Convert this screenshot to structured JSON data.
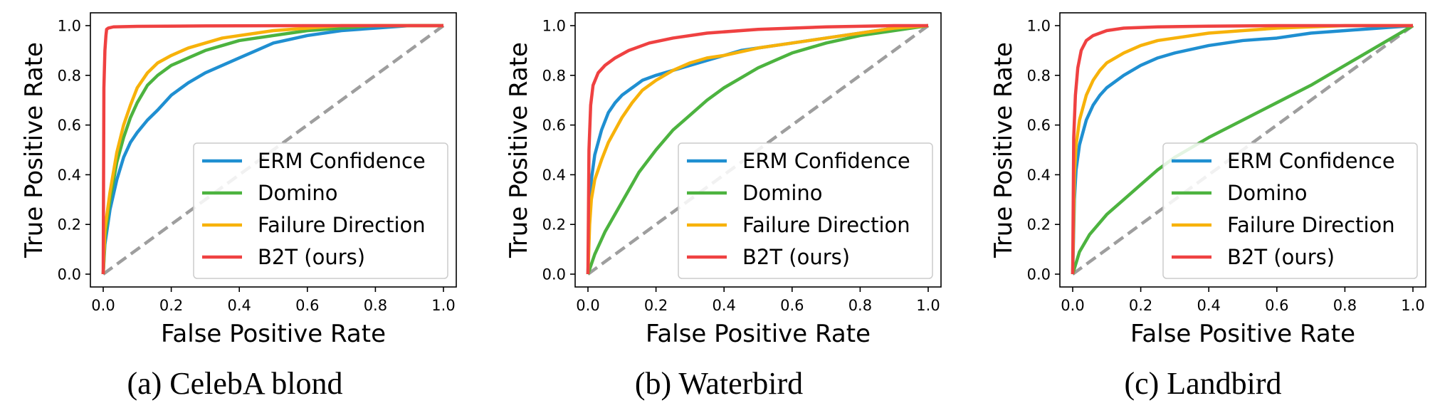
{
  "chart_data": [
    {
      "type": "line",
      "caption": "(a) CelebA blond",
      "xlabel": "False Positive Rate",
      "ylabel": "True Positive Rate",
      "xlim": [
        0,
        1
      ],
      "ylim": [
        0,
        1
      ],
      "xticks": [
        "0.0",
        "0.2",
        "0.4",
        "0.6",
        "0.8",
        "1.0"
      ],
      "yticks": [
        "0.0",
        "0.2",
        "0.4",
        "0.6",
        "0.8",
        "1.0"
      ],
      "legend_position": "lower-right",
      "diagonal": {
        "x": [
          0,
          1
        ],
        "y": [
          0,
          1
        ],
        "color": "#9e9e9e",
        "style": "dashed"
      },
      "series": [
        {
          "name": "ERM Confidence",
          "color": "#1f8fd1",
          "x": [
            0,
            0.005,
            0.02,
            0.04,
            0.06,
            0.08,
            0.1,
            0.13,
            0.16,
            0.2,
            0.25,
            0.3,
            0.35,
            0.4,
            0.45,
            0.5,
            0.6,
            0.7,
            0.8,
            0.9,
            1.0
          ],
          "y": [
            0,
            0.12,
            0.26,
            0.38,
            0.47,
            0.53,
            0.57,
            0.62,
            0.66,
            0.72,
            0.77,
            0.81,
            0.84,
            0.87,
            0.9,
            0.93,
            0.96,
            0.98,
            0.99,
            1.0,
            1.0
          ]
        },
        {
          "name": "Domino",
          "color": "#4cb33f",
          "x": [
            0,
            0.005,
            0.02,
            0.04,
            0.06,
            0.08,
            0.1,
            0.13,
            0.16,
            0.2,
            0.25,
            0.3,
            0.35,
            0.4,
            0.45,
            0.5,
            0.6,
            0.7,
            0.8,
            0.9,
            1.0
          ],
          "y": [
            0,
            0.15,
            0.3,
            0.45,
            0.55,
            0.63,
            0.69,
            0.76,
            0.8,
            0.84,
            0.87,
            0.9,
            0.92,
            0.94,
            0.95,
            0.96,
            0.98,
            0.99,
            1.0,
            1.0,
            1.0
          ]
        },
        {
          "name": "Failure Direction",
          "color": "#f7b20a",
          "x": [
            0,
            0.005,
            0.02,
            0.04,
            0.06,
            0.08,
            0.1,
            0.13,
            0.16,
            0.2,
            0.25,
            0.3,
            0.35,
            0.4,
            0.45,
            0.5,
            0.6,
            0.7,
            0.8,
            0.9,
            1.0
          ],
          "y": [
            0,
            0.18,
            0.33,
            0.49,
            0.6,
            0.68,
            0.75,
            0.81,
            0.85,
            0.88,
            0.91,
            0.93,
            0.95,
            0.96,
            0.97,
            0.98,
            0.99,
            1.0,
            1.0,
            1.0,
            1.0
          ]
        },
        {
          "name": "B2T (ours)",
          "color": "#ef4141",
          "x": [
            0,
            0.002,
            0.005,
            0.008,
            0.01,
            0.015,
            0.03,
            0.1,
            0.3,
            0.6,
            1.0
          ],
          "y": [
            0,
            0.75,
            0.9,
            0.96,
            0.985,
            0.99,
            0.995,
            0.997,
            0.999,
            1.0,
            1.0
          ]
        }
      ]
    },
    {
      "type": "line",
      "caption": "(b) Waterbird",
      "xlabel": "False Positive Rate",
      "ylabel": "True Positive Rate",
      "xlim": [
        0,
        1
      ],
      "ylim": [
        0,
        1
      ],
      "xticks": [
        "0.0",
        "0.2",
        "0.4",
        "0.6",
        "0.8",
        "1.0"
      ],
      "yticks": [
        "0.0",
        "0.2",
        "0.4",
        "0.6",
        "0.8",
        "1.0"
      ],
      "legend_position": "lower-right",
      "diagonal": {
        "x": [
          0,
          1
        ],
        "y": [
          0,
          1
        ],
        "color": "#9e9e9e",
        "style": "dashed"
      },
      "series": [
        {
          "name": "ERM Confidence",
          "color": "#1f8fd1",
          "x": [
            0,
            0.005,
            0.01,
            0.02,
            0.04,
            0.06,
            0.08,
            0.1,
            0.13,
            0.16,
            0.2,
            0.25,
            0.3,
            0.35,
            0.4,
            0.45,
            0.5,
            0.6,
            0.7,
            0.8,
            0.9,
            1.0
          ],
          "y": [
            0,
            0.28,
            0.38,
            0.48,
            0.58,
            0.65,
            0.69,
            0.72,
            0.75,
            0.78,
            0.8,
            0.82,
            0.84,
            0.86,
            0.88,
            0.9,
            0.91,
            0.93,
            0.95,
            0.97,
            0.99,
            1.0
          ]
        },
        {
          "name": "Domino",
          "color": "#4cb33f",
          "x": [
            0,
            0.02,
            0.05,
            0.1,
            0.15,
            0.2,
            0.25,
            0.3,
            0.35,
            0.4,
            0.45,
            0.5,
            0.55,
            0.6,
            0.7,
            0.8,
            0.9,
            1.0
          ],
          "y": [
            0,
            0.08,
            0.17,
            0.29,
            0.41,
            0.5,
            0.58,
            0.64,
            0.7,
            0.75,
            0.79,
            0.83,
            0.86,
            0.89,
            0.93,
            0.96,
            0.98,
            1.0
          ]
        },
        {
          "name": "Failure Direction",
          "color": "#f7b20a",
          "x": [
            0,
            0.005,
            0.01,
            0.02,
            0.04,
            0.06,
            0.08,
            0.1,
            0.13,
            0.16,
            0.2,
            0.25,
            0.3,
            0.35,
            0.4,
            0.5,
            0.6,
            0.7,
            0.8,
            0.9,
            1.0
          ],
          "y": [
            0,
            0.2,
            0.3,
            0.38,
            0.46,
            0.53,
            0.58,
            0.63,
            0.69,
            0.74,
            0.78,
            0.82,
            0.85,
            0.87,
            0.88,
            0.91,
            0.93,
            0.95,
            0.97,
            0.99,
            1.0
          ]
        },
        {
          "name": "B2T (ours)",
          "color": "#ef4141",
          "x": [
            0,
            0.003,
            0.008,
            0.015,
            0.03,
            0.05,
            0.08,
            0.12,
            0.18,
            0.25,
            0.35,
            0.5,
            0.7,
            0.9,
            1.0
          ],
          "y": [
            0,
            0.5,
            0.68,
            0.76,
            0.81,
            0.84,
            0.87,
            0.9,
            0.93,
            0.95,
            0.97,
            0.985,
            0.995,
            1.0,
            1.0
          ]
        }
      ]
    },
    {
      "type": "line",
      "caption": "(c) Landbird",
      "xlabel": "False Positive Rate",
      "ylabel": "True Positive Rate",
      "xlim": [
        0,
        1
      ],
      "ylim": [
        0,
        1
      ],
      "xticks": [
        "0.0",
        "0.2",
        "0.4",
        "0.6",
        "0.8",
        "1.0"
      ],
      "yticks": [
        "0.0",
        "0.2",
        "0.4",
        "0.6",
        "0.8",
        "1.0"
      ],
      "legend_position": "lower-right",
      "diagonal": {
        "x": [
          0,
          1
        ],
        "y": [
          0,
          1
        ],
        "color": "#9e9e9e",
        "style": "dashed"
      },
      "series": [
        {
          "name": "ERM Confidence",
          "color": "#1f8fd1",
          "x": [
            0,
            0.005,
            0.01,
            0.02,
            0.04,
            0.06,
            0.08,
            0.1,
            0.15,
            0.2,
            0.25,
            0.3,
            0.4,
            0.5,
            0.6,
            0.7,
            0.8,
            0.9,
            1.0
          ],
          "y": [
            0,
            0.3,
            0.42,
            0.52,
            0.62,
            0.68,
            0.72,
            0.75,
            0.8,
            0.84,
            0.87,
            0.89,
            0.92,
            0.94,
            0.95,
            0.97,
            0.98,
            0.99,
            1.0
          ]
        },
        {
          "name": "Domino",
          "color": "#4cb33f",
          "x": [
            0,
            0.02,
            0.05,
            0.1,
            0.15,
            0.2,
            0.25,
            0.3,
            0.4,
            0.5,
            0.6,
            0.7,
            0.8,
            0.9,
            1.0
          ],
          "y": [
            0,
            0.09,
            0.16,
            0.24,
            0.3,
            0.36,
            0.42,
            0.47,
            0.55,
            0.62,
            0.69,
            0.76,
            0.84,
            0.92,
            1.0
          ]
        },
        {
          "name": "Failure Direction",
          "color": "#f7b20a",
          "x": [
            0,
            0.005,
            0.01,
            0.02,
            0.04,
            0.06,
            0.08,
            0.1,
            0.15,
            0.2,
            0.25,
            0.3,
            0.4,
            0.5,
            0.6,
            0.8,
            1.0
          ],
          "y": [
            0,
            0.4,
            0.52,
            0.62,
            0.72,
            0.78,
            0.82,
            0.85,
            0.89,
            0.92,
            0.94,
            0.95,
            0.97,
            0.98,
            0.99,
            1.0,
            1.0
          ]
        },
        {
          "name": "B2T (ours)",
          "color": "#ef4141",
          "x": [
            0,
            0.003,
            0.008,
            0.015,
            0.025,
            0.04,
            0.06,
            0.1,
            0.15,
            0.25,
            0.4,
            0.6,
            0.8,
            1.0
          ],
          "y": [
            0,
            0.55,
            0.72,
            0.83,
            0.9,
            0.94,
            0.96,
            0.98,
            0.99,
            0.995,
            0.998,
            1.0,
            1.0,
            1.0
          ]
        }
      ]
    }
  ]
}
